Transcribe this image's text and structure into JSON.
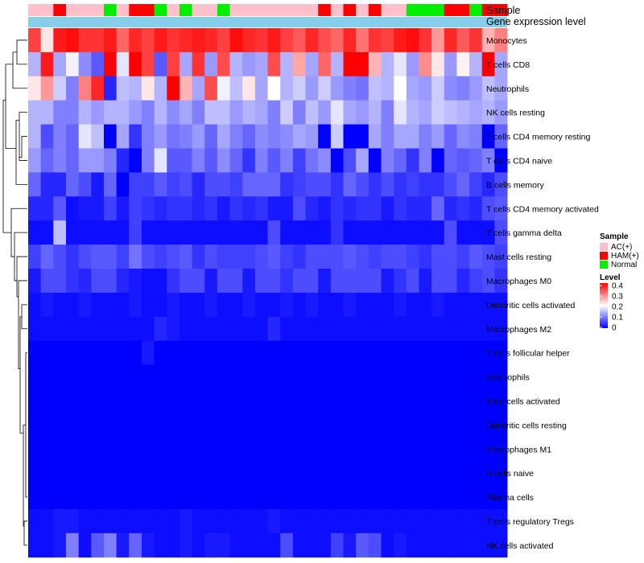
{
  "chart_data": {
    "type": "heatmap",
    "annotation_tracks": [
      "Sample",
      "Gene expression level"
    ],
    "samples": [
      "AC(+)",
      "AC(+)",
      "HAM(+)",
      "AC(+)",
      "AC(+)",
      "AC(+)",
      "Normal",
      "AC(+)",
      "HAM(+)",
      "HAM(+)",
      "Normal",
      "AC(+)",
      "Normal",
      "AC(+)",
      "AC(+)",
      "Normal",
      "AC(+)",
      "AC(+)",
      "AC(+)",
      "AC(+)",
      "AC(+)",
      "AC(+)",
      "AC(+)",
      "HAM(+)",
      "AC(+)",
      "HAM(+)",
      "AC(+)",
      "HAM(+)",
      "AC(+)",
      "AC(+)",
      "Normal",
      "Normal",
      "Normal",
      "HAM(+)",
      "HAM(+)",
      "Normal",
      "HAM(+)",
      "HAM(+)"
    ],
    "rows": [
      "Monocytes",
      "T cells CD8",
      "Neutrophils",
      "NK cells resting",
      "T cells CD4 memory resting",
      "T cells CD4 naive",
      "B cells memory",
      "T cells CD4 memory activated",
      "T cells gamma delta",
      "Mast cells resting",
      "Macrophages M0",
      "Dendritic cells activated",
      "Macrophages M2",
      "T cells follicular helper",
      "Eosinophils",
      "Mast cells activated",
      "Dendritic cells resting",
      "Macrophages M1",
      "B cells naive",
      "Plasma cells",
      "T cells regulatory  Tregs",
      "NK cells activated"
    ],
    "values": [
      [
        0.35,
        0.22,
        0.38,
        0.39,
        0.36,
        0.36,
        0.38,
        0.32,
        0.37,
        0.35,
        0.38,
        0.36,
        0.37,
        0.38,
        0.37,
        0.35,
        0.39,
        0.37,
        0.36,
        0.38,
        0.35,
        0.33,
        0.37,
        0.34,
        0.32,
        0.37,
        0.31,
        0.36,
        0.35,
        0.38,
        0.39,
        0.36,
        0.28,
        0.37,
        0.33,
        0.36,
        0.26,
        0.3
      ],
      [
        0.14,
        0.38,
        0.13,
        0.19,
        0.11,
        0.07,
        0.4,
        0.18,
        0.4,
        0.35,
        0.07,
        0.35,
        0.13,
        0.36,
        0.12,
        0.34,
        0.14,
        0.12,
        0.13,
        0.34,
        0.14,
        0.27,
        0.13,
        0.32,
        0.14,
        0.4,
        0.4,
        0.26,
        0.14,
        0.18,
        0.12,
        0.29,
        0.22,
        0.12,
        0.21,
        0.14,
        0.4,
        0.13
      ],
      [
        0.22,
        0.28,
        0.16,
        0.1,
        0.3,
        0.37,
        0.03,
        0.15,
        0.14,
        0.22,
        0.14,
        0.4,
        0.26,
        0.13,
        0.34,
        0.19,
        0.15,
        0.22,
        0.13,
        0.2,
        0.14,
        0.16,
        0.12,
        0.16,
        0.12,
        0.1,
        0.09,
        0.15,
        0.14,
        0.2,
        0.13,
        0.12,
        0.16,
        0.11,
        0.1,
        0.12,
        0.15,
        0.13
      ],
      [
        0.14,
        0.14,
        0.1,
        0.1,
        0.14,
        0.12,
        0.14,
        0.14,
        0.12,
        0.1,
        0.14,
        0.11,
        0.13,
        0.1,
        0.15,
        0.15,
        0.12,
        0.14,
        0.13,
        0.1,
        0.16,
        0.1,
        0.15,
        0.12,
        0.18,
        0.13,
        0.12,
        0.14,
        0.1,
        0.18,
        0.14,
        0.13,
        0.16,
        0.15,
        0.14,
        0.13,
        0.14,
        0.12
      ],
      [
        0.14,
        0.06,
        0.1,
        0.08,
        0.18,
        0.15,
        0.0,
        0.13,
        0.04,
        0.1,
        0.12,
        0.09,
        0.1,
        0.12,
        0.08,
        0.13,
        0.1,
        0.08,
        0.11,
        0.1,
        0.11,
        0.13,
        0.12,
        0.0,
        0.16,
        0.0,
        0.0,
        0.13,
        0.1,
        0.13,
        0.13,
        0.1,
        0.12,
        0.08,
        0.11,
        0.1,
        0.0,
        0.08
      ],
      [
        0.12,
        0.08,
        0.1,
        0.08,
        0.12,
        0.12,
        0.1,
        0.03,
        0.0,
        0.1,
        0.18,
        0.07,
        0.07,
        0.1,
        0.07,
        0.11,
        0.08,
        0.04,
        0.1,
        0.07,
        0.1,
        0.05,
        0.09,
        0.11,
        0.0,
        0.06,
        0.13,
        0.0,
        0.1,
        0.08,
        0.04,
        0.1,
        0.0,
        0.08,
        0.07,
        0.08,
        0.1,
        0.0
      ],
      [
        0.08,
        0.03,
        0.03,
        0.08,
        0.06,
        0.02,
        0.08,
        0.0,
        0.05,
        0.05,
        0.07,
        0.05,
        0.06,
        0.03,
        0.06,
        0.06,
        0.05,
        0.08,
        0.08,
        0.08,
        0.04,
        0.05,
        0.06,
        0.06,
        0.04,
        0.08,
        0.06,
        0.04,
        0.06,
        0.04,
        0.05,
        0.04,
        0.04,
        0.06,
        0.08,
        0.05,
        0.03,
        0.06
      ],
      [
        0.03,
        0.03,
        0.07,
        0.01,
        0.02,
        0.02,
        0.05,
        0.02,
        0.05,
        0.04,
        0.03,
        0.04,
        0.04,
        0.03,
        0.04,
        0.02,
        0.04,
        0.03,
        0.04,
        0.02,
        0.02,
        0.06,
        0.03,
        0.02,
        0.04,
        0.03,
        0.04,
        0.04,
        0.02,
        0.04,
        0.03,
        0.03,
        0.08,
        0.03,
        0.04,
        0.03,
        0.06,
        0.07
      ],
      [
        0.01,
        0.01,
        0.15,
        0.01,
        0.01,
        0.01,
        0.01,
        0.01,
        0.05,
        0.01,
        0.01,
        0.01,
        0.01,
        0.01,
        0.01,
        0.01,
        0.01,
        0.01,
        0.01,
        0.06,
        0.01,
        0.01,
        0.01,
        0.01,
        0.04,
        0.01,
        0.01,
        0.01,
        0.01,
        0.01,
        0.01,
        0.01,
        0.01,
        0.06,
        0.01,
        0.01,
        0.01,
        0.06
      ],
      [
        0.05,
        0.08,
        0.06,
        0.04,
        0.06,
        0.07,
        0.07,
        0.05,
        0.09,
        0.06,
        0.05,
        0.06,
        0.07,
        0.04,
        0.06,
        0.05,
        0.05,
        0.05,
        0.06,
        0.07,
        0.05,
        0.04,
        0.06,
        0.06,
        0.06,
        0.07,
        0.06,
        0.05,
        0.06,
        0.06,
        0.05,
        0.04,
        0.06,
        0.06,
        0.05,
        0.07,
        0.06,
        0.05
      ],
      [
        0.02,
        0.06,
        0.06,
        0.04,
        0.03,
        0.06,
        0.06,
        0.03,
        0.02,
        0.01,
        0.01,
        0.04,
        0.06,
        0.06,
        0.02,
        0.06,
        0.06,
        0.02,
        0.06,
        0.06,
        0.04,
        0.06,
        0.06,
        0.02,
        0.06,
        0.06,
        0.06,
        0.06,
        0.02,
        0.04,
        0.06,
        0.02,
        0.06,
        0.06,
        0.03,
        0.05,
        0.06,
        0.04
      ],
      [
        0.01,
        0.02,
        0.01,
        0.01,
        0.02,
        0.01,
        0.01,
        0.01,
        0.02,
        0.01,
        0.01,
        0.02,
        0.01,
        0.01,
        0.02,
        0.01,
        0.01,
        0.02,
        0.01,
        0.01,
        0.02,
        0.01,
        0.02,
        0.01,
        0.01,
        0.02,
        0.01,
        0.01,
        0.01,
        0.02,
        0.01,
        0.01,
        0.02,
        0.01,
        0.01,
        0.01,
        0.01,
        0.01
      ],
      [
        0.01,
        0.01,
        0.01,
        0.01,
        0.01,
        0.01,
        0.01,
        0.01,
        0.01,
        0.01,
        0.03,
        0.02,
        0.01,
        0.01,
        0.01,
        0.01,
        0.01,
        0.01,
        0.01,
        0.03,
        0.01,
        0.01,
        0.01,
        0.01,
        0.01,
        0.01,
        0.01,
        0.01,
        0.01,
        0.01,
        0.01,
        0.01,
        0.01,
        0.01,
        0.01,
        0.01,
        0.01,
        0.01
      ],
      [
        0.0,
        0.0,
        0.0,
        0.0,
        0.0,
        0.0,
        0.0,
        0.0,
        0.0,
        0.02,
        0.0,
        0.0,
        0.0,
        0.0,
        0.0,
        0.0,
        0.0,
        0.0,
        0.0,
        0.0,
        0.0,
        0.0,
        0.0,
        0.0,
        0.0,
        0.0,
        0.0,
        0.0,
        0.0,
        0.0,
        0.0,
        0.0,
        0.0,
        0.0,
        0.0,
        0.0,
        0.0,
        0.0
      ],
      [
        0.0,
        0.0,
        0.0,
        0.0,
        0.0,
        0.0,
        0.0,
        0.0,
        0.0,
        0.0,
        0.0,
        0.0,
        0.0,
        0.0,
        0.0,
        0.0,
        0.0,
        0.0,
        0.0,
        0.0,
        0.0,
        0.0,
        0.0,
        0.0,
        0.0,
        0.0,
        0.0,
        0.0,
        0.0,
        0.0,
        0.0,
        0.0,
        0.0,
        0.0,
        0.0,
        0.0,
        0.0,
        0.0
      ],
      [
        0.0,
        0.0,
        0.0,
        0.0,
        0.0,
        0.0,
        0.0,
        0.0,
        0.0,
        0.0,
        0.0,
        0.0,
        0.0,
        0.0,
        0.0,
        0.0,
        0.0,
        0.0,
        0.0,
        0.0,
        0.0,
        0.0,
        0.0,
        0.0,
        0.0,
        0.0,
        0.0,
        0.0,
        0.0,
        0.0,
        0.0,
        0.0,
        0.0,
        0.0,
        0.0,
        0.0,
        0.0,
        0.0
      ],
      [
        0.0,
        0.0,
        0.0,
        0.0,
        0.0,
        0.0,
        0.0,
        0.0,
        0.0,
        0.0,
        0.0,
        0.0,
        0.0,
        0.0,
        0.0,
        0.0,
        0.0,
        0.0,
        0.0,
        0.0,
        0.0,
        0.0,
        0.0,
        0.0,
        0.0,
        0.0,
        0.0,
        0.0,
        0.0,
        0.0,
        0.0,
        0.0,
        0.0,
        0.0,
        0.0,
        0.0,
        0.0,
        0.0
      ],
      [
        0.0,
        0.0,
        0.0,
        0.0,
        0.0,
        0.0,
        0.0,
        0.0,
        0.0,
        0.0,
        0.0,
        0.0,
        0.0,
        0.0,
        0.0,
        0.0,
        0.0,
        0.0,
        0.0,
        0.0,
        0.0,
        0.0,
        0.0,
        0.0,
        0.0,
        0.0,
        0.0,
        0.0,
        0.0,
        0.0,
        0.0,
        0.0,
        0.0,
        0.0,
        0.0,
        0.0,
        0.0,
        0.0
      ],
      [
        0.0,
        0.0,
        0.0,
        0.0,
        0.0,
        0.0,
        0.0,
        0.0,
        0.0,
        0.0,
        0.0,
        0.0,
        0.0,
        0.0,
        0.0,
        0.0,
        0.0,
        0.0,
        0.0,
        0.0,
        0.0,
        0.0,
        0.0,
        0.0,
        0.0,
        0.0,
        0.0,
        0.0,
        0.0,
        0.0,
        0.0,
        0.0,
        0.0,
        0.0,
        0.0,
        0.0,
        0.0,
        0.0
      ],
      [
        0.0,
        0.0,
        0.0,
        0.0,
        0.0,
        0.0,
        0.0,
        0.0,
        0.0,
        0.0,
        0.0,
        0.0,
        0.0,
        0.0,
        0.0,
        0.0,
        0.0,
        0.0,
        0.0,
        0.0,
        0.0,
        0.0,
        0.0,
        0.0,
        0.0,
        0.0,
        0.0,
        0.0,
        0.0,
        0.0,
        0.0,
        0.0,
        0.0,
        0.0,
        0.0,
        0.0,
        0.0,
        0.0
      ],
      [
        0.01,
        0.01,
        0.02,
        0.02,
        0.01,
        0.01,
        0.01,
        0.01,
        0.01,
        0.01,
        0.01,
        0.01,
        0.02,
        0.01,
        0.01,
        0.01,
        0.01,
        0.01,
        0.01,
        0.02,
        0.01,
        0.01,
        0.01,
        0.01,
        0.01,
        0.01,
        0.01,
        0.01,
        0.01,
        0.01,
        0.01,
        0.01,
        0.01,
        0.01,
        0.01,
        0.01,
        0.01,
        0.01
      ],
      [
        0.01,
        0.01,
        0.02,
        0.1,
        0.01,
        0.07,
        0.1,
        0.02,
        0.08,
        0.02,
        0.01,
        0.01,
        0.02,
        0.01,
        0.02,
        0.02,
        0.01,
        0.01,
        0.01,
        0.01,
        0.06,
        0.01,
        0.01,
        0.01,
        0.05,
        0.02,
        0.07,
        0.06,
        0.01,
        0.02,
        0.01,
        0.01,
        0.01,
        0.01,
        0.01,
        0.01,
        0.01,
        0.01
      ]
    ],
    "legend_sample": {
      "title": "Sample",
      "entries": [
        {
          "label": "AC(+)",
          "color": "#FFC0CB"
        },
        {
          "label": "HAM(+)",
          "color": "#FF0000"
        },
        {
          "label": "Normal",
          "color": "#00EE00"
        }
      ]
    },
    "legend_level": {
      "title": "Level",
      "ticks": [
        "0.4",
        "0.3",
        "0.2",
        "0.1",
        "0"
      ],
      "range": [
        0,
        0.4
      ],
      "colors": {
        "low": "#0000FF",
        "mid": "#FFFFFF",
        "high": "#FF0000"
      }
    },
    "expression_track_color": "#87CEEB"
  }
}
